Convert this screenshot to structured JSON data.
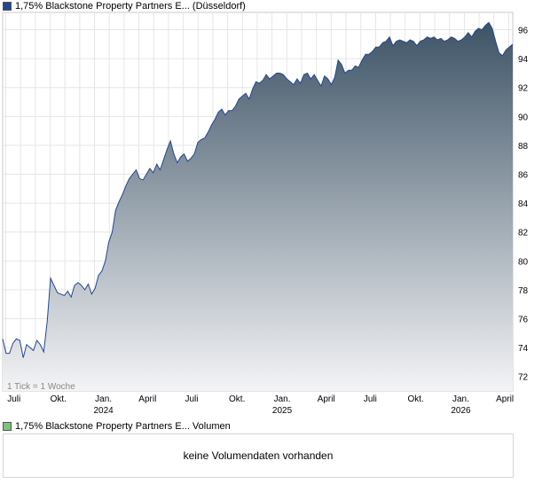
{
  "legend": {
    "price_series": "1,75% Blackstone Property Partners E... (Düsseldorf)",
    "volume_series": "1,75% Blackstone Property Partners E... Volumen",
    "price_color": "#24468f",
    "volume_color": "#7cc37c"
  },
  "tick_note": "1 Tick = 1 Woche",
  "volume_message": "keine Volumendaten vorhanden",
  "chart_data": {
    "type": "area",
    "title": "",
    "xlabel": "",
    "ylabel": "",
    "ylim": [
      71,
      97.2
    ],
    "y_ticks": [
      72,
      74,
      76,
      78,
      80,
      82,
      84,
      86,
      88,
      90,
      92,
      94,
      96
    ],
    "grid": true,
    "line_color": "#24468f",
    "fill_top_color": "#3d5366",
    "fill_bottom_color": "#f4f4f6",
    "x_ticks": [
      {
        "label": "Juli",
        "year": "",
        "week": 3.3
      },
      {
        "label": "Okt.",
        "year": "",
        "week": 16.3
      },
      {
        "label": "Jan.",
        "year": "2024",
        "week": 29.5
      },
      {
        "label": "April",
        "year": "",
        "week": 42.4
      },
      {
        "label": "Juli",
        "year": "",
        "week": 55.3
      },
      {
        "label": "Okt.",
        "year": "",
        "week": 68.6
      },
      {
        "label": "Jan.",
        "year": "2025",
        "week": 81.8
      },
      {
        "label": "April",
        "year": "",
        "week": 94.7
      },
      {
        "label": "Juli",
        "year": "",
        "week": 107.6
      },
      {
        "label": "Okt.",
        "year": "",
        "week": 120.9
      },
      {
        "label": "Jan.",
        "year": "2026",
        "week": 134.1
      },
      {
        "label": "April",
        "year": "",
        "week": 147.0
      }
    ],
    "x_range": [
      0,
      149.3
    ],
    "series": [
      {
        "values": [
          74.6,
          73.6,
          73.6,
          74.3,
          74.6,
          74.5,
          73.3,
          74.2,
          74.0,
          73.8,
          74.5,
          74.2,
          73.7,
          75.8,
          78.8,
          78.3,
          77.8,
          77.7,
          77.6,
          77.9,
          77.5,
          78.3,
          78.5,
          78.3,
          78.0,
          78.4,
          77.7,
          78.1,
          79.0,
          79.3,
          80.0,
          81.3,
          82.0,
          83.5,
          84.1,
          84.6,
          85.2,
          85.7,
          86.0,
          86.3,
          85.7,
          85.6,
          86.0,
          86.4,
          86.1,
          86.7,
          86.3,
          87.0,
          87.7,
          88.3,
          87.4,
          86.8,
          87.2,
          87.4,
          86.9,
          87.1,
          87.4,
          88.2,
          88.4,
          88.5,
          88.9,
          89.4,
          89.8,
          90.3,
          90.5,
          90.1,
          90.4,
          90.4,
          90.7,
          91.2,
          91.4,
          91.6,
          91.2,
          91.9,
          92.4,
          92.3,
          92.5,
          92.9,
          92.6,
          92.8,
          93.0,
          93.0,
          92.9,
          92.6,
          92.4,
          92.2,
          92.6,
          92.3,
          92.9,
          93.0,
          92.6,
          92.9,
          92.5,
          92.1,
          92.8,
          92.6,
          92.2,
          92.7,
          93.9,
          93.6,
          93.0,
          93.2,
          93.2,
          93.5,
          93.4,
          93.9,
          94.3,
          94.3,
          94.5,
          94.8,
          94.8,
          95.1,
          95.2,
          95.5,
          94.9,
          95.2,
          95.3,
          95.2,
          95.1,
          95.3,
          95.2,
          94.9,
          95.2,
          95.3,
          95.5,
          95.4,
          95.5,
          95.3,
          95.4,
          95.2,
          95.3,
          95.5,
          95.4,
          95.2,
          95.3,
          95.5,
          95.8,
          95.5,
          95.9,
          96.1,
          96.0,
          96.3,
          96.5,
          96.1,
          95.2,
          94.4,
          94.2,
          94.6,
          94.8,
          95.0
        ]
      }
    ]
  }
}
